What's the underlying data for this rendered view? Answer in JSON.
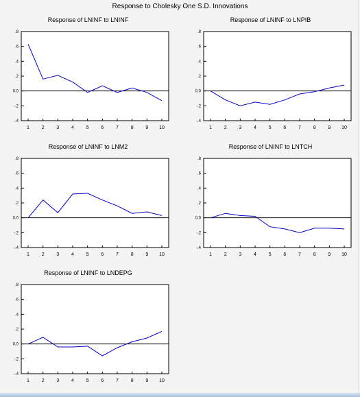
{
  "title": "Response to Cholesky One S.D. Innovations",
  "chart_data": [
    {
      "type": "line",
      "title": "Response of LNINF to LNINF",
      "x": [
        1,
        2,
        3,
        4,
        5,
        6,
        7,
        8,
        9,
        10
      ],
      "series": [
        {
          "values": [
            0.63,
            0.16,
            0.21,
            0.12,
            -0.02,
            0.07,
            -0.02,
            0.04,
            -0.02,
            -0.13
          ]
        }
      ],
      "xticks": [
        "1",
        "2",
        "3",
        "4",
        "5",
        "6",
        "7",
        "8",
        "9",
        "10"
      ],
      "yticks": [
        ".8",
        ".6",
        ".4",
        ".2",
        "0.0",
        "-.2",
        "-.4"
      ],
      "ylim": [
        -0.4,
        0.8
      ],
      "zero_line": true,
      "line_color": "#0000cc"
    },
    {
      "type": "line",
      "title": "Response of LNINF to LNPIB",
      "x": [
        1,
        2,
        3,
        4,
        5,
        6,
        7,
        8,
        9,
        10
      ],
      "series": [
        {
          "values": [
            0.0,
            -0.12,
            -0.2,
            -0.15,
            -0.18,
            -0.12,
            -0.04,
            -0.01,
            0.04,
            0.08
          ]
        }
      ],
      "xticks": [
        "1",
        "2",
        "3",
        "4",
        "5",
        "6",
        "7",
        "8",
        "9",
        "10"
      ],
      "yticks": [
        ".8",
        ".6",
        ".4",
        ".2",
        "0.0",
        "-.2",
        "-.4"
      ],
      "ylim": [
        -0.4,
        0.8
      ],
      "zero_line": true,
      "line_color": "#0000cc"
    },
    {
      "type": "line",
      "title": "Response of LNINF to LNM2",
      "x": [
        1,
        2,
        3,
        4,
        5,
        6,
        7,
        8,
        9,
        10
      ],
      "series": [
        {
          "values": [
            0.0,
            0.24,
            0.07,
            0.32,
            0.33,
            0.24,
            0.16,
            0.06,
            0.08,
            0.03
          ]
        }
      ],
      "xticks": [
        "1",
        "2",
        "3",
        "4",
        "5",
        "6",
        "7",
        "8",
        "9",
        "10"
      ],
      "yticks": [
        ".8",
        ".6",
        ".4",
        ".2",
        "0.0",
        "-.2",
        "-.4"
      ],
      "ylim": [
        -0.4,
        0.8
      ],
      "zero_line": true,
      "line_color": "#0000cc"
    },
    {
      "type": "line",
      "title": "Response of LNINF to LNTCH",
      "x": [
        1,
        2,
        3,
        4,
        5,
        6,
        7,
        8,
        9,
        10
      ],
      "series": [
        {
          "values": [
            0.0,
            0.06,
            0.03,
            0.02,
            -0.12,
            -0.15,
            -0.2,
            -0.14,
            -0.14,
            -0.15
          ]
        }
      ],
      "xticks": [
        "1",
        "2",
        "3",
        "4",
        "5",
        "6",
        "7",
        "8",
        "9",
        "10"
      ],
      "yticks": [
        ".8",
        ".6",
        ".4",
        ".2",
        "0.0",
        "-.2",
        "-.4"
      ],
      "ylim": [
        -0.4,
        0.8
      ],
      "zero_line": true,
      "line_color": "#0000cc"
    },
    {
      "type": "line",
      "title": "Response of LNINF to LNDEPG",
      "x": [
        1,
        2,
        3,
        4,
        5,
        6,
        7,
        8,
        9,
        10
      ],
      "series": [
        {
          "values": [
            0.0,
            0.09,
            -0.04,
            -0.04,
            -0.03,
            -0.16,
            -0.05,
            0.03,
            0.08,
            0.17
          ]
        }
      ],
      "xticks": [
        "1",
        "2",
        "3",
        "4",
        "5",
        "6",
        "7",
        "8",
        "9",
        "10"
      ],
      "yticks": [
        ".8",
        ".6",
        ".4",
        ".2",
        "0.0",
        "-.2",
        "-.4"
      ],
      "ylim": [
        -0.4,
        0.8
      ],
      "zero_line": true,
      "line_color": "#0000cc"
    }
  ]
}
